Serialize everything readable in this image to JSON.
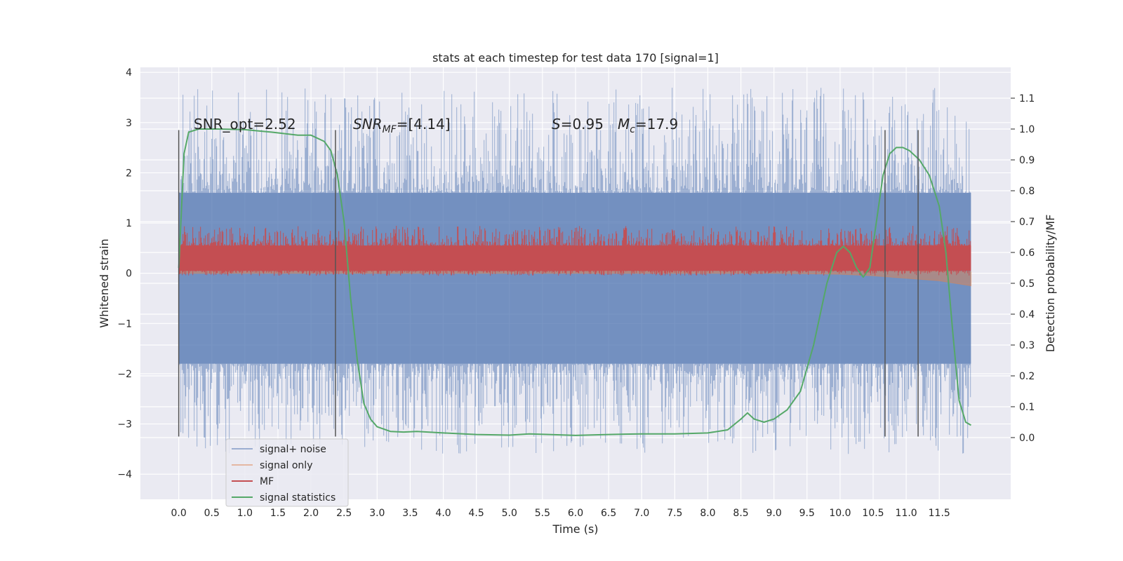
{
  "chart_data": {
    "type": "line",
    "title": "stats at each timestep for test data 170 [signal=1]",
    "xlabel": "Time (s)",
    "ylabel": "Whitened strain",
    "ylabel_right": "Detection probability/MF",
    "xlim": [
      -0.58,
      12.58
    ],
    "ylim": [
      -4.5,
      4.1
    ],
    "ylim_right": [
      -0.2,
      1.2
    ],
    "x_ticks": [
      "0.0",
      "0.5",
      "1.0",
      "1.5",
      "2.0",
      "2.5",
      "3.0",
      "3.5",
      "4.0",
      "4.5",
      "5.0",
      "5.5",
      "6.0",
      "6.5",
      "7.0",
      "7.5",
      "8.0",
      "8.5",
      "9.0",
      "9.5",
      "10.0",
      "10.5",
      "11.0",
      "11.5"
    ],
    "y_ticks": [
      "4",
      "3",
      "2",
      "1",
      "0",
      "−1",
      "−2",
      "−3",
      "−4"
    ],
    "y_ticks_right": [
      "1.1",
      "1.0",
      "0.9",
      "0.8",
      "0.7",
      "0.6",
      "0.5",
      "0.4",
      "0.3",
      "0.2",
      "0.1",
      "0.0"
    ],
    "y_right_gridlines": [
      0.0,
      0.1,
      0.2,
      0.3,
      0.4,
      0.5,
      0.6,
      0.7,
      0.8,
      0.9,
      1.0,
      1.1
    ],
    "annotations": {
      "snr_opt": "SNR_opt=2.52",
      "snr_mf_a": "SNR",
      "snr_mf_b": "MF",
      "snr_mf_c": "=[4.14]",
      "s_a": "S",
      "s_b": "=0.95",
      "mc_a": "M",
      "mc_b": "c",
      "mc_c": "=17.9"
    },
    "markers_x": [
      0.0,
      2.37,
      10.68,
      11.18
    ],
    "series": [
      {
        "name": "signal+ noise",
        "color": "#4c72b0",
        "axis": "left",
        "kind": "noise-band",
        "x_range": [
          0.0,
          11.98
        ],
        "dense_band": [
          -1.8,
          1.6
        ],
        "peak_range": [
          -3.6,
          3.7
        ]
      },
      {
        "name": "signal only",
        "color": "#dd8452",
        "axis": "left",
        "kind": "band",
        "x": [
          0.0,
          1.0,
          2.0,
          3.0,
          4.0,
          5.0,
          6.0,
          7.0,
          8.0,
          9.0,
          10.0,
          10.5,
          11.0,
          11.5,
          11.98
        ],
        "upper": [
          0.05,
          0.05,
          0.05,
          0.05,
          0.05,
          0.05,
          0.05,
          0.05,
          0.05,
          0.05,
          0.06,
          0.06,
          0.05,
          0.04,
          0.03
        ],
        "lower": [
          0.0,
          0.0,
          0.0,
          0.0,
          0.0,
          0.0,
          0.0,
          0.0,
          0.0,
          0.0,
          -0.02,
          -0.05,
          -0.1,
          -0.15,
          -0.25
        ]
      },
      {
        "name": "MF",
        "color": "#c44e52",
        "axis": "left",
        "kind": "noise-band",
        "x_range": [
          0.0,
          11.98
        ],
        "dense_band": [
          0.05,
          0.55
        ],
        "peak_range": [
          -0.05,
          0.95
        ]
      },
      {
        "name": "signal statistics",
        "color": "#55a868",
        "axis": "right",
        "kind": "line",
        "x": [
          0.0,
          0.08,
          0.15,
          0.3,
          0.6,
          1.0,
          1.4,
          1.8,
          2.0,
          2.2,
          2.3,
          2.4,
          2.5,
          2.6,
          2.7,
          2.8,
          2.9,
          3.0,
          3.2,
          3.4,
          3.6,
          4.0,
          4.5,
          5.0,
          5.3,
          5.6,
          6.0,
          6.5,
          7.0,
          7.5,
          8.0,
          8.3,
          8.5,
          8.6,
          8.7,
          8.85,
          9.0,
          9.2,
          9.4,
          9.6,
          9.8,
          9.95,
          10.05,
          10.15,
          10.25,
          10.35,
          10.45,
          10.55,
          10.65,
          10.75,
          10.85,
          10.95,
          11.05,
          11.2,
          11.35,
          11.5,
          11.6,
          11.7,
          11.8,
          11.9,
          11.98
        ],
        "y": [
          0.55,
          0.92,
          0.99,
          1.0,
          1.0,
          0.998,
          0.99,
          0.98,
          0.98,
          0.96,
          0.93,
          0.85,
          0.7,
          0.45,
          0.25,
          0.11,
          0.06,
          0.035,
          0.02,
          0.018,
          0.02,
          0.015,
          0.01,
          0.008,
          0.012,
          0.01,
          0.007,
          0.01,
          0.012,
          0.012,
          0.015,
          0.025,
          0.06,
          0.08,
          0.06,
          0.05,
          0.06,
          0.09,
          0.15,
          0.3,
          0.5,
          0.6,
          0.62,
          0.6,
          0.55,
          0.52,
          0.55,
          0.7,
          0.85,
          0.92,
          0.94,
          0.94,
          0.93,
          0.9,
          0.85,
          0.75,
          0.6,
          0.35,
          0.12,
          0.05,
          0.04
        ]
      }
    ],
    "legend": {
      "position": "lower-left",
      "entries": [
        "signal+ noise",
        "signal only",
        "MF",
        "signal statistics"
      ]
    },
    "grid": true
  }
}
